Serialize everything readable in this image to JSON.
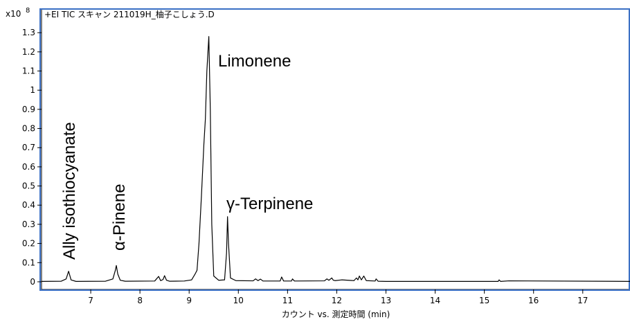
{
  "chart_data": {
    "type": "line",
    "title": "+EI TIC スキャン 211019H_柚子こしょう.D",
    "y_axis_multiplier": "x10",
    "y_axis_exponent": "8",
    "x_label": "カウント vs. 測定時間 (min)",
    "annotations": [
      "Ally isothiocyanate",
      "α-Pinene",
      "Limonene",
      "γ-Terpinene"
    ],
    "x": [
      6.0,
      6.4,
      6.5,
      6.55,
      6.6,
      6.7,
      7.3,
      7.45,
      7.5,
      7.52,
      7.55,
      7.6,
      7.7,
      8.3,
      8.38,
      8.42,
      8.47,
      8.5,
      8.54,
      8.6,
      8.9,
      9.05,
      9.12,
      9.16,
      9.2,
      9.25,
      9.3,
      9.33,
      9.36,
      9.4,
      9.43,
      9.46,
      9.5,
      9.6,
      9.72,
      9.76,
      9.78,
      9.8,
      9.84,
      9.95,
      10.3,
      10.35,
      10.4,
      10.45,
      10.5,
      10.85,
      10.88,
      10.92,
      11.08,
      11.1,
      11.14,
      11.75,
      11.8,
      11.84,
      11.9,
      11.93,
      11.97,
      12.1,
      12.35,
      12.4,
      12.43,
      12.46,
      12.5,
      12.55,
      12.6,
      12.78,
      12.8,
      12.84,
      13.0,
      15.28,
      15.3,
      15.33,
      15.5,
      17.96
    ],
    "series": [
      {
        "color": "#000000",
        "values": [
          0.002,
          0.003,
          0.015,
          0.055,
          0.01,
          0.002,
          0.003,
          0.015,
          0.06,
          0.085,
          0.04,
          0.008,
          0.003,
          0.004,
          0.028,
          0.006,
          0.012,
          0.032,
          0.008,
          0.003,
          0.004,
          0.01,
          0.04,
          0.06,
          0.2,
          0.45,
          0.72,
          0.85,
          1.1,
          1.28,
          0.9,
          0.3,
          0.03,
          0.008,
          0.01,
          0.15,
          0.34,
          0.2,
          0.02,
          0.006,
          0.005,
          0.015,
          0.006,
          0.014,
          0.004,
          0.004,
          0.025,
          0.004,
          0.004,
          0.015,
          0.004,
          0.005,
          0.015,
          0.008,
          0.02,
          0.008,
          0.006,
          0.01,
          0.006,
          0.02,
          0.01,
          0.03,
          0.01,
          0.03,
          0.006,
          0.004,
          0.015,
          0.003,
          0.002,
          0.002,
          0.01,
          0.002,
          0.005,
          0.002
        ]
      }
    ],
    "xlim": [
      6,
      17.96
    ],
    "ylim": [
      -0.04,
      1.42
    ],
    "xticks": [
      7,
      8,
      9,
      10,
      11,
      12,
      13,
      14,
      15,
      16,
      17
    ],
    "yticks": [
      0,
      0.1,
      0.2,
      0.3,
      0.4,
      0.5,
      0.6,
      0.7,
      0.8,
      0.9,
      1,
      1.1,
      1.2,
      1.3
    ],
    "frame_color": "#3a6fc4"
  }
}
